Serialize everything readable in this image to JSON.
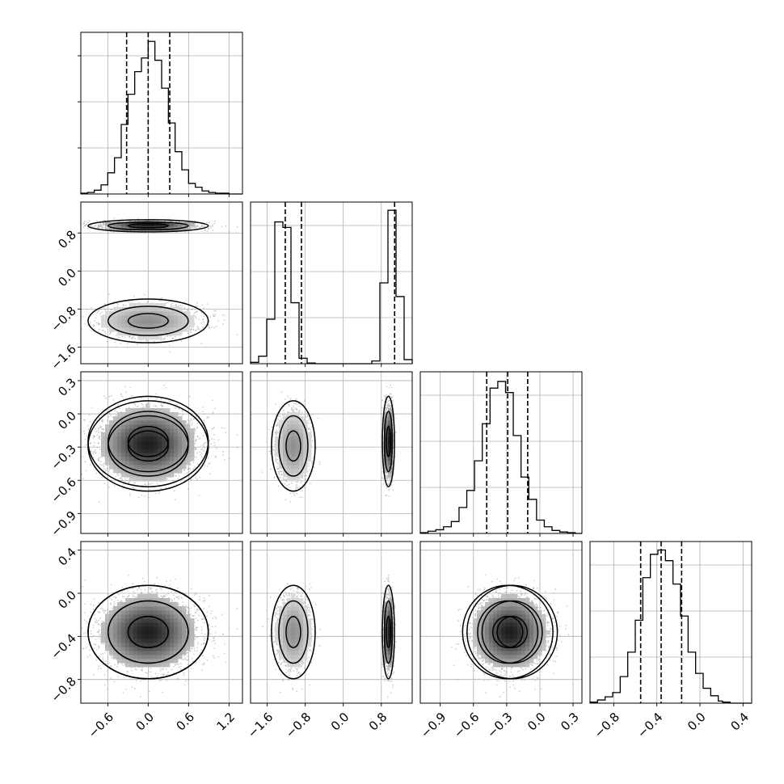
{
  "chart_data": {
    "type": "scatter",
    "title": "",
    "parameters": [
      "",
      "",
      "",
      ""
    ],
    "histograms": [
      {
        "param": 0,
        "xlim": [
          -1.0,
          1.4
        ],
        "bins": [
          -1.0,
          -0.9,
          -0.8,
          -0.7,
          -0.6,
          -0.5,
          -0.4,
          -0.3,
          -0.2,
          -0.1,
          0.0,
          0.1,
          0.2,
          0.3,
          0.4,
          0.5,
          0.6,
          0.7,
          0.8,
          0.9,
          1.0,
          1.1,
          1.2
        ],
        "counts": [
          1,
          2,
          5,
          12,
          28,
          48,
          92,
          132,
          162,
          180,
          202,
          177,
          140,
          94,
          56,
          32,
          14,
          9,
          4,
          2,
          1,
          1
        ],
        "ymax": 214,
        "quantiles": [
          -0.32,
          0.0,
          0.32
        ]
      },
      {
        "param": 1,
        "xlim": [
          -1.95,
          1.45
        ],
        "bins": [
          -1.95,
          -1.78,
          -1.61,
          -1.44,
          -1.27,
          -1.1,
          -0.93,
          -0.76,
          -0.59,
          -0.42,
          -0.25,
          -0.08,
          0.09,
          0.26,
          0.43,
          0.6,
          0.77,
          0.94,
          1.11,
          1.28,
          1.45
        ],
        "counts": [
          2,
          11,
          65,
          207,
          199,
          89,
          8,
          1,
          0,
          0,
          0,
          0,
          0,
          0,
          0,
          4,
          118,
          224,
          98,
          6
        ],
        "ymax": 236,
        "quantiles": [
          -1.22,
          -0.88,
          1.08
        ]
      },
      {
        "param": 2,
        "xlim": [
          -1.08,
          0.38
        ],
        "bins": [
          -1.08,
          -1.01,
          -0.94,
          -0.87,
          -0.8,
          -0.73,
          -0.66,
          -0.59,
          -0.52,
          -0.45,
          -0.38,
          -0.31,
          -0.24,
          -0.17,
          -0.1,
          -0.03,
          0.04,
          0.11,
          0.18,
          0.25,
          0.32
        ],
        "counts": [
          1,
          3,
          5,
          9,
          16,
          35,
          58,
          98,
          148,
          196,
          205,
          190,
          132,
          76,
          46,
          18,
          9,
          4,
          2,
          1
        ],
        "ymax": 218,
        "quantiles": [
          -0.48,
          -0.29,
          -0.11
        ]
      },
      {
        "param": 3,
        "xlim": [
          -1.02,
          0.48
        ],
        "bins": [
          -1.02,
          -0.95,
          -0.88,
          -0.81,
          -0.74,
          -0.67,
          -0.6,
          -0.53,
          -0.46,
          -0.39,
          -0.32,
          -0.25,
          -0.18,
          -0.11,
          -0.04,
          0.03,
          0.1,
          0.17,
          0.21,
          0.28
        ],
        "counts": [
          1,
          3,
          6,
          10,
          25,
          48,
          78,
          118,
          140,
          144,
          134,
          112,
          82,
          48,
          28,
          14,
          7,
          2,
          1
        ],
        "ymax": 152,
        "quantiles": [
          -0.55,
          -0.36,
          -0.17
        ]
      }
    ],
    "axes": [
      {
        "lim": [
          -1.0,
          1.4
        ],
        "ticks": [
          -0.6,
          0.0,
          0.6,
          1.2
        ],
        "tick_labels": [
          "−0.6",
          "0.0",
          "0.6",
          "1.2"
        ]
      },
      {
        "lim": [
          -1.95,
          1.45
        ],
        "ticks": [
          -1.6,
          -0.8,
          0.0,
          0.8
        ],
        "tick_labels": [
          "−1.6",
          "−0.8",
          "0.0",
          "0.8"
        ]
      },
      {
        "lim": [
          -1.08,
          0.38
        ],
        "ticks": [
          -0.9,
          -0.6,
          -0.3,
          0.0,
          0.3
        ],
        "tick_labels": [
          "−0.9",
          "−0.6",
          "−0.3",
          "0.0",
          "0.3"
        ]
      },
      {
        "lim": [
          -1.02,
          0.48
        ],
        "ticks": [
          -0.8,
          -0.4,
          0.0,
          0.4
        ],
        "tick_labels": [
          "−0.8",
          "−0.4",
          "0.0",
          "0.4"
        ]
      }
    ],
    "components": [
      {
        "centers": [
          0.0,
          0.95,
          -0.25,
          -0.36
        ],
        "widths": [
          0.35,
          0.05,
          0.16,
          0.17
        ],
        "weight": 0.5
      },
      {
        "centers": [
          0.0,
          -1.05,
          -0.29,
          -0.36
        ],
        "widths": [
          0.35,
          0.18,
          0.16,
          0.17
        ],
        "weight": 0.5
      }
    ],
    "contour_levels": [
      1.0,
      2.0,
      3.0
    ],
    "grid": true,
    "legend": "none"
  }
}
